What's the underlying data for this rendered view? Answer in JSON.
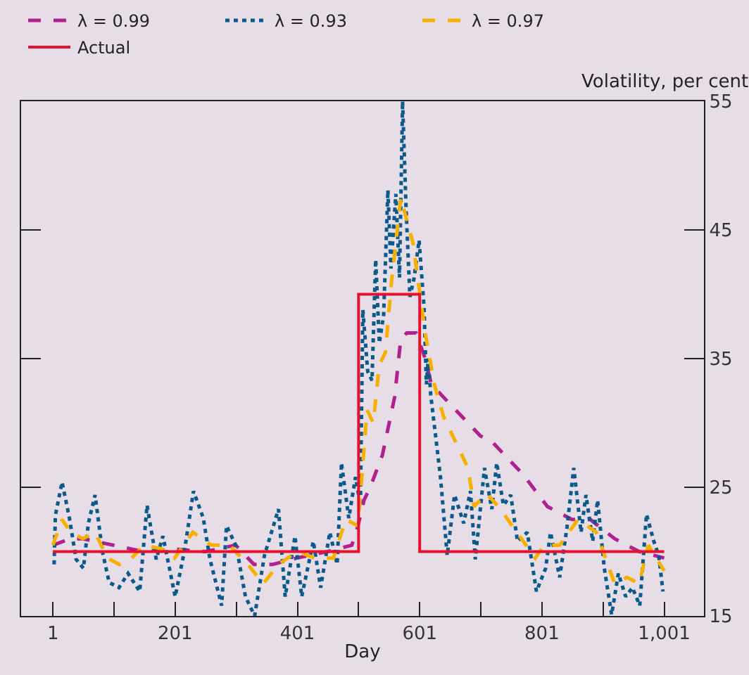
{
  "chart_data": {
    "type": "line",
    "xlabel": "Day",
    "ylabel": "Volatility, per cent",
    "xlim": [
      -51,
      1066
    ],
    "xticks": [
      1,
      {
        "value": 101,
        "label": null
      },
      201,
      {
        "value": 301,
        "label": null
      },
      401,
      {
        "value": 501,
        "label": null
      },
      601,
      {
        "value": 701,
        "label": null
      },
      801,
      {
        "value": 901,
        "label": null
      },
      {
        "value": 1001,
        "label": "1,001"
      }
    ],
    "ylim": [
      15,
      55
    ],
    "yticks": [
      15,
      25,
      35,
      45,
      55
    ],
    "grid": false,
    "legend": "top left",
    "marker": "none",
    "series": [
      {
        "name": "λ = 0.99",
        "color": "#b0208f",
        "line_style": "dashed",
        "x": [
          1,
          30,
          50,
          100,
          150,
          200,
          250,
          300,
          330,
          360,
          400,
          450,
          490,
          500,
          510,
          520,
          540,
          560,
          570,
          580,
          595,
          610,
          620,
          640,
          660,
          700,
          720,
          770,
          810,
          850,
          880,
          920,
          960,
          1001
        ],
        "values": [
          20.5,
          21,
          21,
          20.5,
          20,
          20.2,
          20,
          20.5,
          19,
          19,
          19.5,
          20,
          20.5,
          22,
          24,
          25,
          27.5,
          32,
          36.5,
          37,
          37,
          35,
          33,
          32,
          31,
          29,
          28.5,
          26,
          23.5,
          22.5,
          22.5,
          21,
          20,
          19.5
        ]
      },
      {
        "name": "λ = 0.93",
        "color": "#0a5a8c",
        "line_style": "dotted",
        "x": [
          3,
          5,
          16,
          28,
          39,
          51,
          59,
          70,
          82,
          93,
          109,
          124,
          143,
          155,
          170,
          181,
          201,
          216,
          231,
          247,
          258,
          277,
          285,
          301,
          316,
          331,
          347,
          370,
          381,
          397,
          408,
          427,
          439,
          454,
          466,
          473,
          485,
          496,
          504,
          508,
          516,
          523,
          529,
          535,
          542,
          549,
          554,
          562,
          568,
          573,
          579,
          585,
          592,
          600,
          608,
          612,
          615,
          619,
          635,
          646,
          658,
          673,
          684,
          692,
          707,
          719,
          727,
          738,
          750,
          761,
          777,
          792,
          807,
          815,
          830,
          842,
          853,
          865,
          873,
          884,
          892,
          903,
          915,
          926,
          938,
          949,
          961,
          972,
          984,
          992,
          999
        ],
        "values": [
          19,
          22.8,
          25.4,
          22.6,
          19.4,
          18.7,
          22.2,
          24.4,
          20,
          17.6,
          17.2,
          18.3,
          16.9,
          23.6,
          19.4,
          21.2,
          16.5,
          20,
          24.7,
          22.6,
          19.4,
          15.8,
          22,
          20.4,
          16.5,
          15,
          19.7,
          23.3,
          16.5,
          21.2,
          16.5,
          20.8,
          17.2,
          21.5,
          19,
          26.9,
          22.6,
          25.8,
          23.6,
          38.8,
          34,
          33.3,
          42.7,
          36.2,
          38.4,
          48.1,
          42,
          47.8,
          41.3,
          55,
          46.3,
          39.8,
          41.3,
          44.2,
          39.1,
          33,
          35,
          32.2,
          25.8,
          19.7,
          24.4,
          22.2,
          24.7,
          19.4,
          26.5,
          23.3,
          26.9,
          23.6,
          24.4,
          20.8,
          21.5,
          16.9,
          18.7,
          21.5,
          18,
          21.9,
          26.5,
          21.5,
          24.4,
          20.8,
          24,
          18.7,
          15.1,
          18.3,
          16.5,
          17.2,
          15.8,
          22.9,
          20.8,
          19.7,
          16.9
        ]
      },
      {
        "name": "λ = 0.97",
        "color": "#f8b000",
        "line_style": "dashed",
        "x": [
          1,
          16,
          30,
          50,
          70,
          90,
          110,
          130,
          150,
          180,
          200,
          230,
          260,
          290,
          320,
          345,
          370,
          400,
          430,
          460,
          480,
          500,
          515,
          525,
          535,
          545,
          555,
          570,
          590,
          610,
          625,
          640,
          660,
          680,
          690,
          710,
          730,
          760,
          790,
          805,
          830,
          860,
          890,
          920,
          940,
          960,
          975,
          1001
        ],
        "values": [
          20.5,
          22.5,
          21.5,
          21,
          21.5,
          19.5,
          19,
          19.5,
          20.5,
          20.2,
          19.5,
          21.5,
          20.5,
          20.5,
          19,
          17.5,
          19,
          20,
          19.5,
          19.5,
          22.5,
          22,
          31,
          30,
          34.5,
          35.5,
          41,
          47.5,
          44,
          37,
          33,
          30.5,
          28.5,
          26.5,
          23.5,
          24.5,
          23.5,
          21.5,
          19.5,
          20.5,
          20.5,
          22.5,
          21.5,
          17.5,
          18,
          17.5,
          20.5,
          18.5
        ]
      },
      {
        "name": "Actual",
        "color": "#e8112d",
        "line_style": "solid",
        "x": [
          1,
          501,
          501,
          601,
          601,
          1001
        ],
        "values": [
          20,
          20,
          40,
          40,
          20,
          20
        ]
      }
    ]
  }
}
